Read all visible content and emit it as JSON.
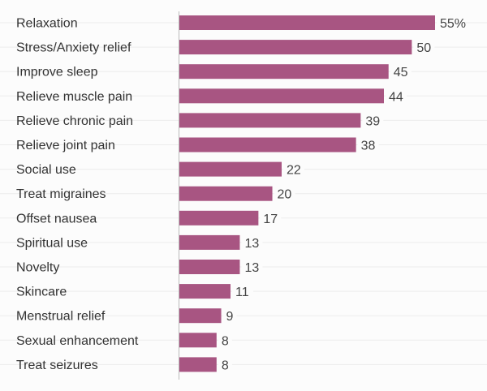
{
  "chart_data": {
    "type": "bar",
    "orientation": "horizontal",
    "title": "",
    "xlabel": "",
    "ylabel": "",
    "categories": [
      "Relaxation",
      "Stress/Anxiety relief",
      "Improve sleep",
      "Relieve muscle pain",
      "Relieve chronic pain",
      "Relieve joint pain",
      "Social use",
      "Treat migraines",
      "Offset nausea",
      "Spiritual use",
      "Novelty",
      "Skincare",
      "Menstrual relief",
      "Sexual enhancement",
      "Treat seizures"
    ],
    "values": [
      55,
      50,
      45,
      44,
      39,
      38,
      22,
      20,
      17,
      13,
      13,
      11,
      9,
      8,
      8
    ],
    "value_labels": [
      "55%",
      "50",
      "45",
      "44",
      "39",
      "38",
      "22",
      "20",
      "17",
      "13",
      "13",
      "11",
      "9",
      "8",
      "8"
    ],
    "xlim": [
      0,
      55
    ],
    "grid": true,
    "bar_color": "#a85582"
  }
}
